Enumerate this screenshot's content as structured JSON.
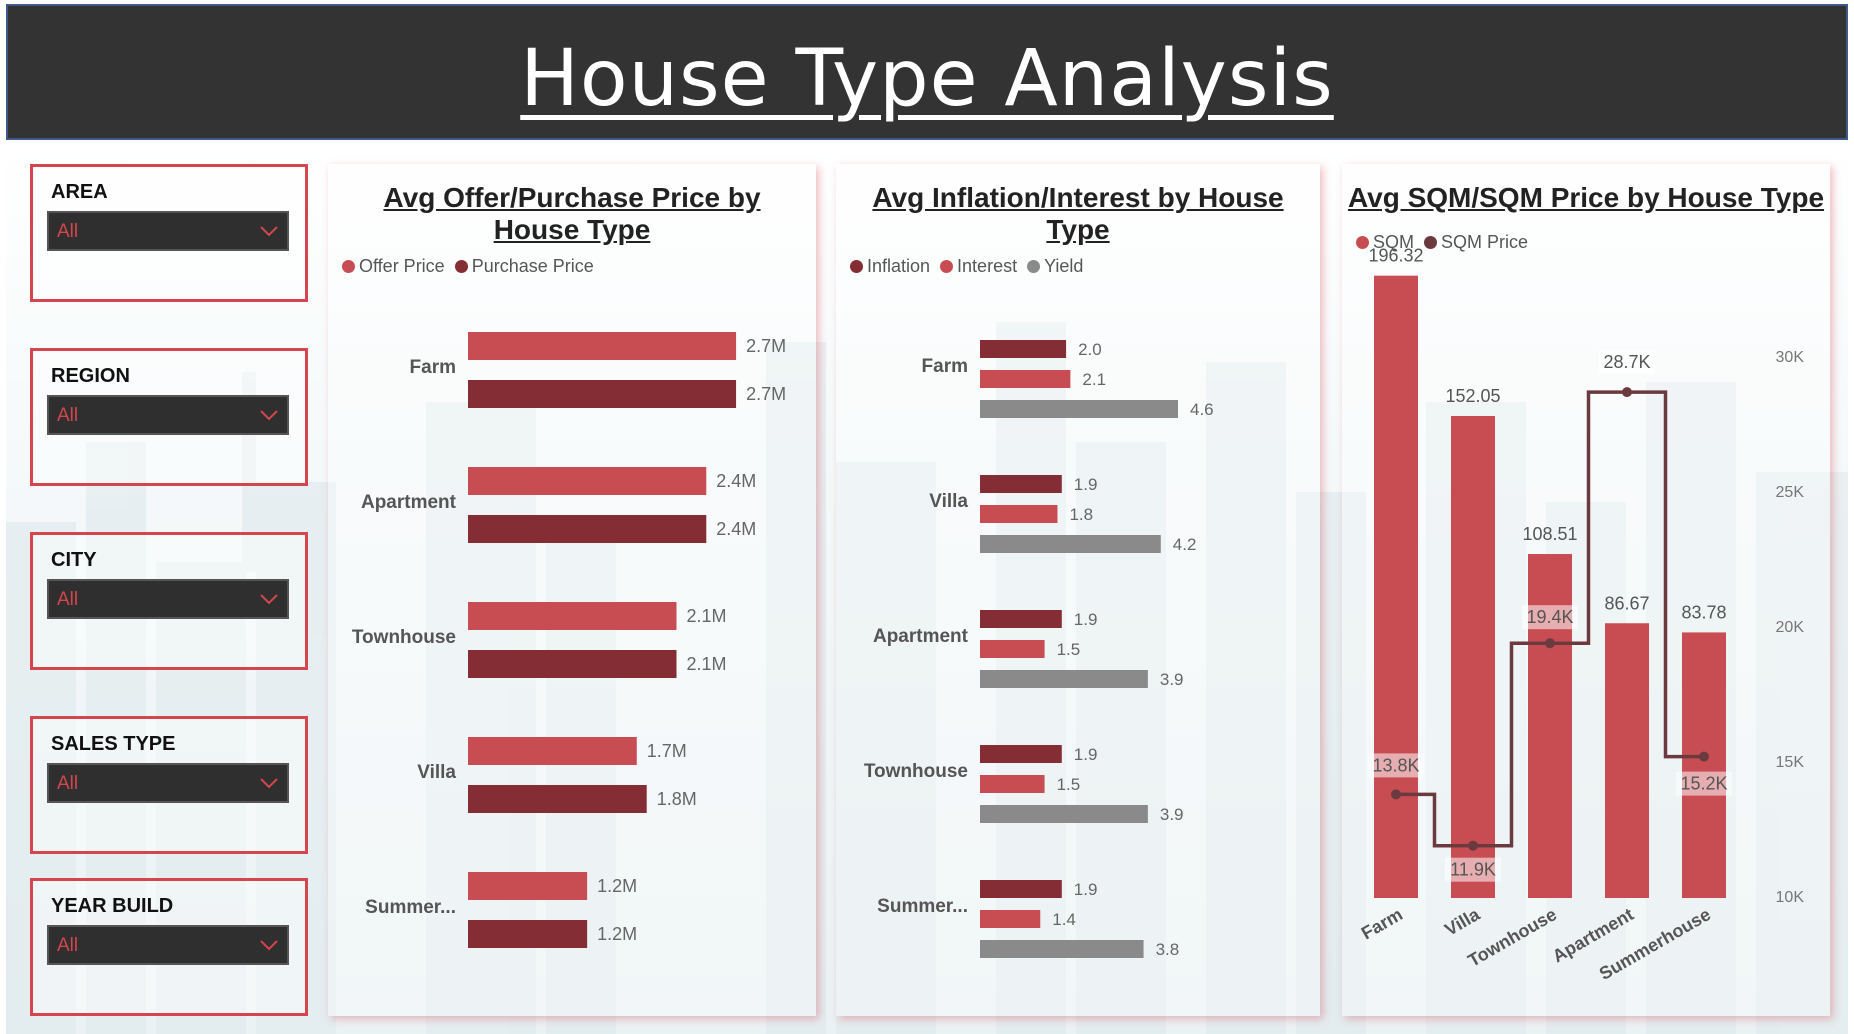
{
  "title": "House Type Analysis",
  "colors": {
    "offer": "#c84d53",
    "purchase": "#842d35",
    "inflation": "#842d35",
    "interest": "#c84d53",
    "yield": "#8a8a8a",
    "sqm_bar": "#c84d53",
    "sqm_price_line": "#6b3a3e",
    "slicer_border": "#d4454d",
    "banner_bg": "#333333"
  },
  "slicers": [
    {
      "label": "AREA",
      "value": "All"
    },
    {
      "label": "REGION",
      "value": "All"
    },
    {
      "label": "CITY",
      "value": "All"
    },
    {
      "label": "SALES TYPE",
      "value": "All"
    },
    {
      "label": "YEAR BUILD",
      "value": "All"
    }
  ],
  "chart_data": [
    {
      "type": "bar",
      "orientation": "horizontal",
      "title": "Avg Offer/Purchase Price by House Type",
      "categories": [
        "Farm",
        "Apartment",
        "Townhouse",
        "Villa",
        "Summer..."
      ],
      "series": [
        {
          "name": "Offer Price",
          "values": [
            2700000,
            2400000,
            2100000,
            1700000,
            1200000
          ],
          "labels": [
            "2.7M",
            "2.4M",
            "2.1M",
            "1.7M",
            "1.2M"
          ]
        },
        {
          "name": "Purchase Price",
          "values": [
            2700000,
            2400000,
            2100000,
            1800000,
            1200000
          ],
          "labels": [
            "2.7M",
            "2.4M",
            "2.1M",
            "1.8M",
            "1.2M"
          ]
        }
      ],
      "legend": "top-left"
    },
    {
      "type": "bar",
      "orientation": "horizontal",
      "title": "Avg Inflation/Interest by House Type",
      "categories": [
        "Farm",
        "Villa",
        "Apartment",
        "Townhouse",
        "Summer..."
      ],
      "series": [
        {
          "name": "Inflation",
          "values": [
            2.0,
            1.9,
            1.9,
            1.9,
            1.9
          ],
          "labels": [
            "2.0",
            "1.9",
            "1.9",
            "1.9",
            "1.9"
          ]
        },
        {
          "name": "Interest",
          "values": [
            2.1,
            1.8,
            1.5,
            1.5,
            1.4
          ],
          "labels": [
            "2.1",
            "1.8",
            "1.5",
            "1.5",
            "1.4"
          ]
        },
        {
          "name": "Yield",
          "values": [
            4.6,
            4.2,
            3.9,
            3.9,
            3.8
          ],
          "labels": [
            "4.6",
            "4.2",
            "3.9",
            "3.9",
            "3.8"
          ]
        }
      ],
      "legend": "top-left"
    },
    {
      "type": "bar",
      "combo": "bar+line",
      "title": "Avg SQM/SQM  Price by House Type",
      "categories": [
        "Farm",
        "Villa",
        "Townhouse",
        "Apartment",
        "Summerhouse"
      ],
      "series": [
        {
          "name": "SQM",
          "kind": "bar",
          "values": [
            196.32,
            152.05,
            108.51,
            86.67,
            83.78
          ],
          "labels": [
            "196.32",
            "152.05",
            "108.51",
            "86.67",
            "83.78"
          ]
        },
        {
          "name": "SQM Price",
          "kind": "line",
          "axis": "secondary",
          "values": [
            13800,
            11900,
            19400,
            28700,
            15200
          ],
          "labels": [
            "13.8K",
            "11.9K",
            "19.4K",
            "28.7K",
            "15.2K"
          ]
        }
      ],
      "y2ticks": [
        "30K",
        "25K",
        "20K",
        "15K",
        "10K"
      ],
      "y2lim": [
        10000,
        30000
      ],
      "ylim": [
        0,
        200
      ],
      "legend": "top-left"
    }
  ]
}
